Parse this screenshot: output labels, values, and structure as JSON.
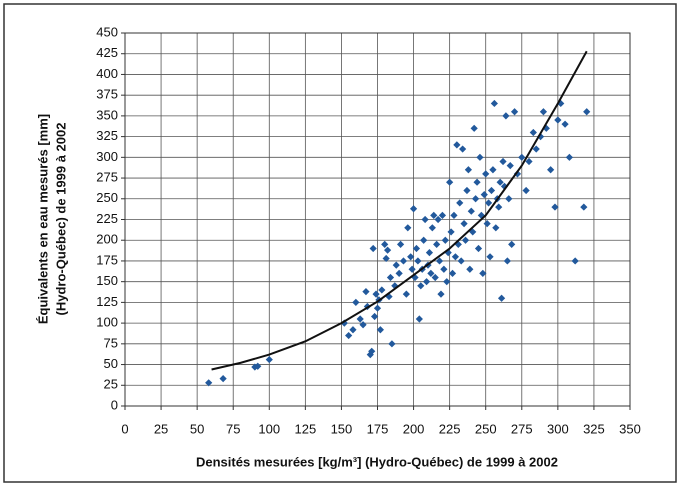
{
  "chart_data": {
    "type": "scatter",
    "xlabel": "Densités mesurées [kg/m³] (Hydro-Québec) de 1999 à 2002",
    "ylabel": [
      "Équivalents en eau mesurés [mm]",
      "(Hydro-Québec) de 1999 à 2002"
    ],
    "xlim": [
      0,
      350
    ],
    "xticks": [
      0,
      25,
      50,
      75,
      100,
      125,
      150,
      175,
      200,
      225,
      250,
      275,
      300,
      325,
      350
    ],
    "ylim": [
      0,
      450
    ],
    "yticks": [
      0,
      25,
      50,
      75,
      100,
      125,
      150,
      175,
      200,
      225,
      250,
      275,
      300,
      325,
      350,
      375,
      400,
      425,
      450
    ],
    "grid": true,
    "color": "#22599c",
    "x": [
      58,
      68,
      90,
      92,
      100,
      152,
      155,
      158,
      160,
      163,
      165,
      167,
      168,
      170,
      171,
      172,
      173,
      174,
      175,
      176,
      177,
      178,
      180,
      181,
      182,
      183,
      184,
      185,
      187,
      188,
      190,
      191,
      193,
      195,
      196,
      198,
      199,
      200,
      201,
      202,
      203,
      204,
      205,
      206,
      207,
      208,
      209,
      210,
      211,
      212,
      213,
      214,
      215,
      216,
      217,
      218,
      219,
      220,
      221,
      222,
      223,
      224,
      225,
      226,
      227,
      228,
      229,
      230,
      231,
      232,
      233,
      234,
      235,
      236,
      237,
      238,
      239,
      240,
      241,
      242,
      243,
      244,
      245,
      246,
      247,
      248,
      249,
      250,
      251,
      252,
      253,
      254,
      255,
      256,
      257,
      258,
      259,
      260,
      261,
      262,
      263,
      264,
      265,
      266,
      267,
      268,
      270,
      272,
      275,
      278,
      280,
      283,
      285,
      288,
      290,
      292,
      295,
      298,
      300,
      302,
      305,
      308,
      312,
      318,
      320
    ],
    "values": [
      28,
      33,
      47,
      48,
      56,
      100,
      85,
      92,
      125,
      105,
      98,
      138,
      120,
      62,
      66,
      190,
      108,
      135,
      118,
      128,
      92,
      140,
      195,
      178,
      188,
      132,
      155,
      75,
      145,
      170,
      160,
      195,
      175,
      135,
      215,
      180,
      165,
      238,
      155,
      190,
      175,
      105,
      145,
      165,
      200,
      225,
      150,
      170,
      185,
      160,
      215,
      230,
      155,
      195,
      225,
      175,
      135,
      230,
      165,
      200,
      150,
      185,
      270,
      210,
      160,
      230,
      180,
      315,
      195,
      245,
      175,
      310,
      220,
      200,
      260,
      285,
      165,
      235,
      210,
      335,
      250,
      270,
      190,
      300,
      230,
      160,
      255,
      280,
      220,
      245,
      180,
      260,
      285,
      365,
      215,
      250,
      240,
      270,
      130,
      295,
      265,
      350,
      175,
      250,
      290,
      195,
      355,
      280,
      300,
      260,
      295,
      330,
      310,
      325,
      355,
      335,
      285,
      240,
      345,
      365,
      340,
      300,
      175,
      240,
      355
    ],
    "trendline": {
      "color": "#111111",
      "x": [
        60,
        80,
        100,
        125,
        150,
        175,
        200,
        225,
        250,
        275,
        300,
        320
      ],
      "values": [
        44,
        52,
        62,
        78,
        100,
        126,
        158,
        190,
        230,
        290,
        365,
        428
      ]
    }
  }
}
